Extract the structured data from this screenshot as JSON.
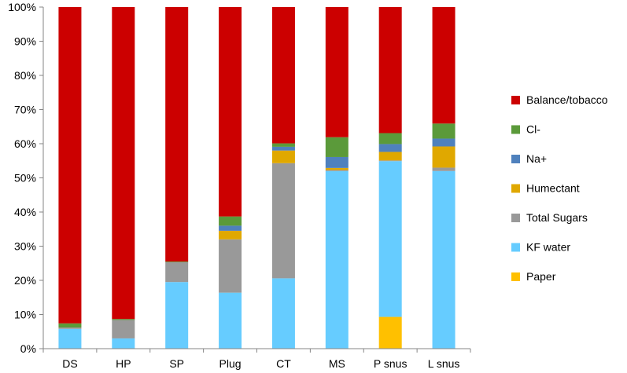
{
  "chart_data": {
    "type": "bar",
    "stacked": true,
    "title": "",
    "xlabel": "",
    "ylabel": "",
    "ylim": [
      0,
      100
    ],
    "y_ticks": [
      "0%",
      "10%",
      "20%",
      "30%",
      "40%",
      "50%",
      "60%",
      "70%",
      "80%",
      "90%",
      "100%"
    ],
    "y_tick_values": [
      0,
      10,
      20,
      30,
      40,
      50,
      60,
      70,
      80,
      90,
      100
    ],
    "grid": false,
    "legend_position": "right",
    "categories": [
      "DS",
      "HP",
      "SP",
      "Plug",
      "CT",
      "MS",
      "P snus",
      "L snus"
    ],
    "series": [
      {
        "name": "Paper",
        "color": "#FFC000",
        "values": [
          0,
          0,
          0,
          0,
          0,
          0,
          9.3,
          0
        ]
      },
      {
        "name": "KF water",
        "color": "#66CCFF",
        "values": [
          5.8,
          3.0,
          19.5,
          16.4,
          20.6,
          52.0,
          45.6,
          52.0
        ]
      },
      {
        "name": "Total Sugars",
        "color": "#999999",
        "values": [
          0.4,
          5.4,
          5.8,
          15.6,
          33.7,
          0.3,
          0.2,
          1.0
        ]
      },
      {
        "name": "Humectant",
        "color": "#E0A800",
        "values": [
          0,
          0,
          0,
          2.5,
          3.7,
          0.6,
          2.5,
          6.2
        ]
      },
      {
        "name": "Na+",
        "color": "#4F81BD",
        "values": [
          0,
          0,
          0,
          1.5,
          1.1,
          3.2,
          2.3,
          2.3
        ]
      },
      {
        "name": "Cl-",
        "color": "#5B9A3A",
        "values": [
          1.2,
          0.3,
          0.2,
          2.7,
          1.0,
          5.8,
          3.2,
          4.4
        ]
      },
      {
        "name": "Balance/tobacco",
        "color": "#CC0000",
        "values": [
          92.6,
          91.3,
          74.5,
          61.3,
          39.9,
          38.1,
          36.9,
          34.1
        ]
      }
    ],
    "legend_order": [
      "Balance/tobacco",
      "Cl-",
      "Na+",
      "Humectant",
      "Total Sugars",
      "KF water",
      "Paper"
    ]
  }
}
